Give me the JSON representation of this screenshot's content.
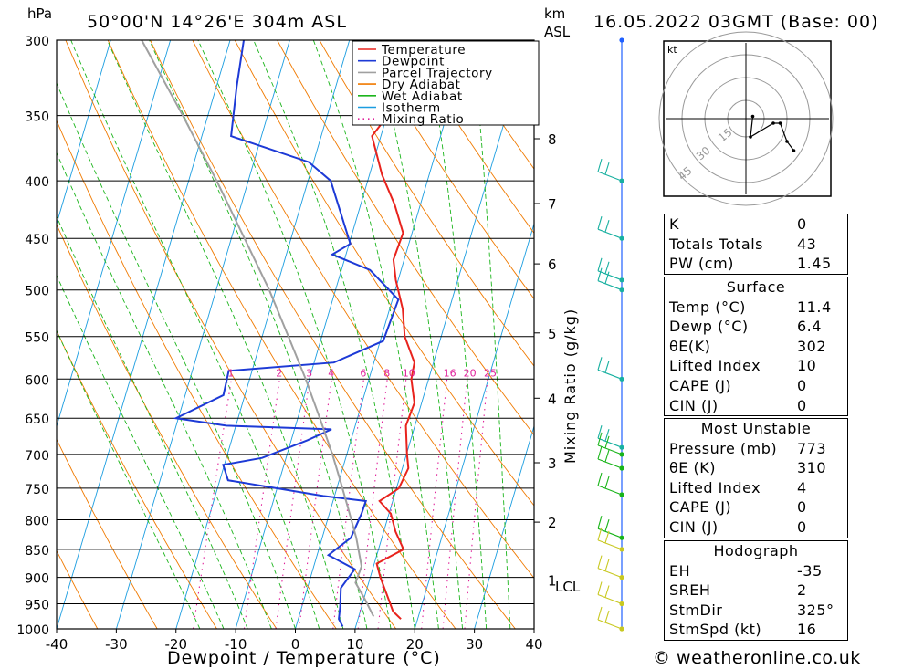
{
  "header": {
    "location": "50°00'N  14°26'E  304m  ASL",
    "datetime": "16.05.2022  03GMT  (Base: 00)",
    "pressure_unit": "hPa",
    "height_unit_km": "km",
    "height_unit_asl": "ASL",
    "x_axis_label": "Dewpoint / Temperature (°C)",
    "mixing_axis_label": "Mixing Ratio (g/kg)",
    "hodograph_unit": "kt",
    "lcl_label": "LCL"
  },
  "legend": [
    {
      "label": "Temperature",
      "color": "#e8231d",
      "style": "solid"
    },
    {
      "label": "Dewpoint",
      "color": "#1d3ad6",
      "style": "solid"
    },
    {
      "label": "Parcel Trajectory",
      "color": "#a0a0a0",
      "style": "solid"
    },
    {
      "label": "Dry Adiabat",
      "color": "#f07a00",
      "style": "solid"
    },
    {
      "label": "Wet Adiabat",
      "color": "#1cb51c",
      "style": "solid"
    },
    {
      "label": "Isotherm",
      "color": "#1b9de0",
      "style": "solid"
    },
    {
      "label": "Mixing Ratio",
      "color": "#e0209a",
      "style": "dotted"
    }
  ],
  "indices": [
    {
      "label": "K",
      "value": "0"
    },
    {
      "label": "Totals Totals",
      "value": "43"
    },
    {
      "label": "PW (cm)",
      "value": "1.45"
    }
  ],
  "surface": {
    "title": "Surface",
    "rows": [
      {
        "label": "Temp (°C)",
        "value": "11.4"
      },
      {
        "label": "Dewp (°C)",
        "value": "6.4"
      },
      {
        "label": "θE(K)",
        "value": "302"
      },
      {
        "label": "Lifted Index",
        "value": "10"
      },
      {
        "label": "CAPE (J)",
        "value": "0"
      },
      {
        "label": "CIN (J)",
        "value": "0"
      }
    ]
  },
  "most_unstable": {
    "title": "Most Unstable",
    "rows": [
      {
        "label": "Pressure (mb)",
        "value": "773"
      },
      {
        "label": "θE (K)",
        "value": "310"
      },
      {
        "label": "Lifted Index",
        "value": "4"
      },
      {
        "label": "CAPE (J)",
        "value": "0"
      },
      {
        "label": "CIN (J)",
        "value": "0"
      }
    ]
  },
  "hodograph": {
    "title": "Hodograph",
    "rows": [
      {
        "label": "EH",
        "value": "-35"
      },
      {
        "label": "SREH",
        "value": "2"
      },
      {
        "label": "StmDir",
        "value": "325°"
      },
      {
        "label": "StmSpd (kt)",
        "value": "16"
      }
    ],
    "ring_labels": [
      "15",
      "30",
      "45"
    ],
    "trace_kt": [
      [
        3,
        1
      ],
      [
        2,
        -8
      ],
      [
        12,
        -2
      ],
      [
        15,
        -2
      ],
      [
        18,
        -10
      ],
      [
        21,
        -14
      ]
    ]
  },
  "credit": "© weatheronline.co.uk",
  "chart_data": {
    "type": "line",
    "title": "50°00'N 14°26'E 304m ASL",
    "xlabel": "Dewpoint / Temperature (°C)",
    "ylabel": "hPa",
    "x_ticks": [
      -40,
      -30,
      -20,
      -10,
      0,
      10,
      20,
      30,
      40
    ],
    "pressure_levels": [
      300,
      350,
      400,
      450,
      500,
      550,
      600,
      650,
      700,
      750,
      800,
      850,
      900,
      950,
      1000
    ],
    "height_km_ticks": [
      {
        "label": "8",
        "p": 367
      },
      {
        "label": "7",
        "p": 419
      },
      {
        "label": "6",
        "p": 474
      },
      {
        "label": "5",
        "p": 546
      },
      {
        "label": "4",
        "p": 624
      },
      {
        "label": "3",
        "p": 712
      },
      {
        "label": "2",
        "p": 804
      },
      {
        "label": "1",
        "p": 905
      }
    ],
    "mixing_ratio_labels": [
      "1",
      "2",
      "3",
      "4",
      "6",
      "8",
      "10",
      "16",
      "20",
      "25"
    ],
    "lcl_p": 908,
    "series": [
      {
        "name": "Temperature",
        "color": "#e8231d",
        "points": [
          [
            980,
            17.2
          ],
          [
            965,
            15.5
          ],
          [
            930,
            13.5
          ],
          [
            900,
            11.7
          ],
          [
            875,
            10.4
          ],
          [
            850,
            14.2
          ],
          [
            820,
            12.0
          ],
          [
            790,
            10.3
          ],
          [
            770,
            7.8
          ],
          [
            750,
            10.4
          ],
          [
            720,
            11.0
          ],
          [
            700,
            10.1
          ],
          [
            660,
            8.5
          ],
          [
            630,
            8.8
          ],
          [
            600,
            7.1
          ],
          [
            580,
            6.8
          ],
          [
            550,
            3.9
          ],
          [
            520,
            2.2
          ],
          [
            490,
            -0.4
          ],
          [
            470,
            -1.8
          ],
          [
            445,
            -1.5
          ],
          [
            420,
            -4.3
          ],
          [
            395,
            -7.9
          ],
          [
            365,
            -11.5
          ],
          [
            355,
            -10.4
          ],
          [
            330,
            -11.9
          ],
          [
            300,
            -13.8
          ]
        ]
      },
      {
        "name": "Dewpoint",
        "color": "#1d3ad6",
        "points": [
          [
            995,
            7.8
          ],
          [
            980,
            6.8
          ],
          [
            955,
            6.4
          ],
          [
            920,
            5.6
          ],
          [
            885,
            7.0
          ],
          [
            860,
            1.9
          ],
          [
            830,
            4.8
          ],
          [
            790,
            5.4
          ],
          [
            770,
            5.5
          ],
          [
            762,
            -1.9
          ],
          [
            738,
            -18.6
          ],
          [
            715,
            -20.2
          ],
          [
            705,
            -14.0
          ],
          [
            680,
            -7.3
          ],
          [
            665,
            -3.8
          ],
          [
            660,
            -21.6
          ],
          [
            650,
            -30.4
          ],
          [
            620,
            -23.6
          ],
          [
            590,
            -23.9
          ],
          [
            580,
            -6.7
          ],
          [
            555,
            0.5
          ],
          [
            510,
            1.0
          ],
          [
            480,
            -5.2
          ],
          [
            465,
            -12.3
          ],
          [
            455,
            -9.8
          ],
          [
            400,
            -16.2
          ],
          [
            385,
            -20.8
          ],
          [
            365,
            -35.1
          ],
          [
            330,
            -36.6
          ],
          [
            300,
            -37.7
          ]
        ]
      },
      {
        "name": "Parcel Trajectory",
        "color": "#a0a0a0",
        "points": [
          [
            975,
            12.5
          ],
          [
            940,
            10.1
          ],
          [
            910,
            7.8
          ],
          [
            880,
            8.0
          ],
          [
            830,
            5.7
          ],
          [
            780,
            2.8
          ],
          [
            740,
            0.3
          ],
          [
            700,
            -2.4
          ],
          [
            650,
            -6.3
          ],
          [
            600,
            -10.6
          ],
          [
            550,
            -15.6
          ],
          [
            500,
            -21.1
          ],
          [
            450,
            -27.8
          ],
          [
            400,
            -35.3
          ],
          [
            350,
            -44.2
          ],
          [
            300,
            -54.8
          ]
        ]
      }
    ],
    "wind_profile_levels": [
      300,
      400,
      450,
      490,
      500,
      600,
      690,
      700,
      720,
      760,
      830,
      850,
      900,
      950,
      1000
    ]
  }
}
